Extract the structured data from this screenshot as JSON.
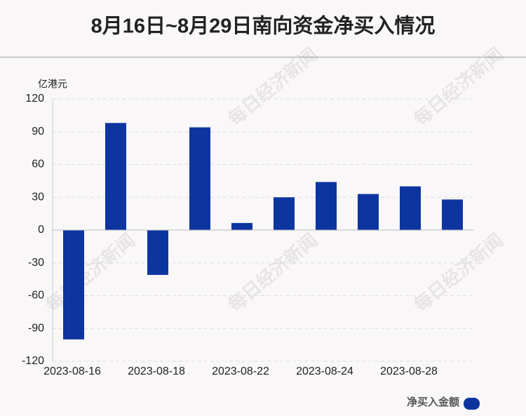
{
  "chart_data": {
    "type": "bar",
    "title": "8月16日~8月29日南向资金净买入情况",
    "y_label": "亿港元",
    "watermark": "每日经济新闻",
    "categories": [
      "2023-08-16",
      null,
      "2023-08-18",
      null,
      "2023-08-22",
      null,
      "2023-08-24",
      null,
      "2023-08-28",
      null
    ],
    "series": [
      {
        "name": "净买入金额",
        "color": "#0d35a0",
        "values": [
          -100,
          98,
          -41,
          94,
          6.5,
          30,
          44,
          33,
          40,
          28
        ]
      }
    ],
    "ylim": [
      -120,
      120
    ],
    "yticks": [
      -120,
      -90,
      -60,
      -30,
      0,
      30,
      60,
      90,
      120
    ],
    "grid": true,
    "legend": "bottom-right"
  }
}
